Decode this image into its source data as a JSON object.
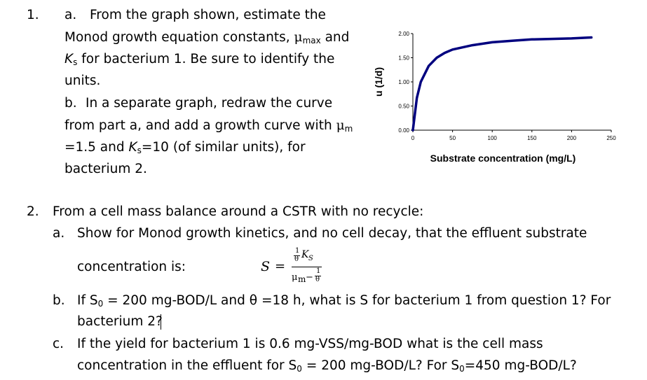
{
  "q1": {
    "num": "1.",
    "a_label": "a.",
    "a_line1": "From the graph shown, estimate the",
    "a_line2_pre": "Monod growth equation constants, ",
    "a_line2_mu": "μ",
    "a_line2_mu_sub": "max",
    "a_line2_post": " and",
    "a_line3_k": "K",
    "a_line3_ks": "s",
    "a_line3_post": " for bacterium 1.   Be sure to identify the",
    "a_line4": "units.",
    "b_label": "b.",
    "b_line1": "In a separate graph, redraw the curve",
    "b_line2_pre": "from part a, and add a growth curve with ",
    "b_line2_mu": "μ",
    "b_line2_mu_sub": "m",
    "b_line3_pre": "=1.5 and ",
    "b_line3_k": "K",
    "b_line3_ks": "s",
    "b_line3_post": "=10 (of similar units), for",
    "b_line4": "bacterium 2."
  },
  "q2": {
    "num": "2.",
    "intro": "From a cell mass balance around a CSTR with no recycle:",
    "a_label": "a.",
    "a_line1": "Show for Monod growth kinetics, and no cell decay, that the effluent substrate",
    "a_line2": "concentration is:",
    "eq_S": "S",
    "eq_eq": "=",
    "eq_one": "1",
    "eq_theta": "θ",
    "eq_K": "K",
    "eq_Ks": "S",
    "eq_mu": "μ",
    "eq_mu_sub": "m",
    "eq_minus": "−",
    "b_label": "b.",
    "b_line1_pre": "If S",
    "b_line1_sub": "0",
    "b_line1_post": " = 200 mg-BOD/L and θ =18 h, what is S for bacterium 1 from question 1? For",
    "b_line2": "bacterium 2?",
    "c_label": "c.",
    "c_line1": "If the yield for bacterium 1 is 0.6 mg-VSS/mg-BOD what is the cell mass",
    "c_line2_pre": "concentration in the effluent for S",
    "c_line2_sub1": "0",
    "c_line2_mid": " = 200 mg-BOD/L? For S",
    "c_line2_sub2": "0",
    "c_line2_post": "=450 mg-BOD/L?"
  },
  "chart_data": {
    "type": "line",
    "title": "",
    "xlabel": "Substrate concentration (mg/L)",
    "ylabel": "u (1/d)",
    "xlim": [
      0,
      250
    ],
    "ylim": [
      0,
      2.0
    ],
    "x_ticks": [
      "0",
      "50",
      "100",
      "150",
      "200",
      "250"
    ],
    "y_ticks": [
      "0.00",
      "0.50",
      "1.00",
      "1.50",
      "2.00"
    ],
    "grid": false,
    "series": [
      {
        "color": "#00007f",
        "x": [
          0,
          5,
          10,
          20,
          30,
          40,
          50,
          75,
          100,
          125,
          150,
          175,
          200,
          225
        ],
        "y": [
          0.0,
          0.67,
          1.0,
          1.33,
          1.5,
          1.6,
          1.67,
          1.76,
          1.82,
          1.85,
          1.88,
          1.89,
          1.9,
          1.92
        ]
      }
    ]
  }
}
